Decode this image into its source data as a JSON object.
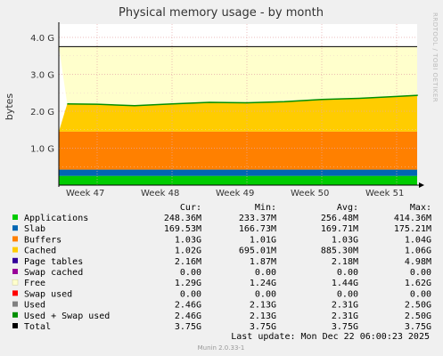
{
  "chart_data": {
    "type": "area",
    "title": "Physical memory usage - by month",
    "ylabel": "bytes",
    "side_label": "RRDTOOL / TOBI OETIKER",
    "x_ticks": [
      "Week 47",
      "Week 48",
      "Week 49",
      "Week 50",
      "Week 51"
    ],
    "y_ticks": [
      "4.0 G",
      "3.0 G",
      "2.0 G",
      "1.0 G"
    ],
    "ylim": [
      0,
      4.0
    ],
    "y_unit": "G bytes",
    "grid": true,
    "legend_headers": [
      "Cur:",
      "Min:",
      "Avg:",
      "Max:"
    ],
    "series": [
      {
        "name": "Applications",
        "color": "#00cc00",
        "cur": "248.36M",
        "min": "233.37M",
        "avg": "256.48M",
        "max": "414.36M",
        "level": 0.25
      },
      {
        "name": "Slab",
        "color": "#0066b3",
        "cur": "169.53M",
        "min": "166.73M",
        "avg": "169.71M",
        "max": "175.21M",
        "level": 0.17
      },
      {
        "name": "Buffers",
        "color": "#ff8000",
        "cur": "1.03G",
        "min": "1.01G",
        "avg": "1.03G",
        "max": "1.04G",
        "level": 1.03
      },
      {
        "name": "Cached",
        "color": "#ffcc00",
        "cur": "1.02G",
        "min": "695.01M",
        "avg": "885.30M",
        "max": "1.06G",
        "level": 1.02
      },
      {
        "name": "Page tables",
        "color": "#330099",
        "cur": "2.16M",
        "min": "1.87M",
        "avg": "2.18M",
        "max": "4.98M",
        "level": 0.002
      },
      {
        "name": "Swap cached",
        "color": "#990099",
        "cur": "0.00",
        "min": "0.00",
        "avg": "0.00",
        "max": "0.00",
        "level": 0
      },
      {
        "name": "Free",
        "color": "#ffffcc",
        "cur": "1.29G",
        "min": "1.24G",
        "avg": "1.44G",
        "max": "1.62G",
        "level": 1.29
      },
      {
        "name": "Swap used",
        "color": "#ff0000",
        "cur": "0.00",
        "min": "0.00",
        "avg": "0.00",
        "max": "0.00",
        "level": 0
      },
      {
        "name": "Used",
        "color": "#808080",
        "cur": "2.46G",
        "min": "2.13G",
        "avg": "2.31G",
        "max": "2.50G",
        "level": 2.46
      },
      {
        "name": "Used + Swap used",
        "color": "#008f00",
        "cur": "2.46G",
        "min": "2.13G",
        "avg": "2.31G",
        "max": "2.50G",
        "level": 2.46
      },
      {
        "name": "Total",
        "color": "#000000",
        "cur": "3.75G",
        "min": "3.75G",
        "avg": "3.75G",
        "max": "3.75G",
        "level": 3.75
      }
    ],
    "used_trend": {
      "x_weeks": [
        46.6,
        47.0,
        47.5,
        48.0,
        48.5,
        49.0,
        49.5,
        50.0,
        50.5,
        51.0,
        51.5,
        51.85
      ],
      "y": [
        2.2,
        2.19,
        2.15,
        2.2,
        2.24,
        2.23,
        2.26,
        2.32,
        2.35,
        2.4,
        2.43,
        2.45
      ]
    }
  },
  "footer": {
    "last_update": "Last update:  Mon Dec 22 06:00:23 2025",
    "version": "Munin 2.0.33-1"
  }
}
